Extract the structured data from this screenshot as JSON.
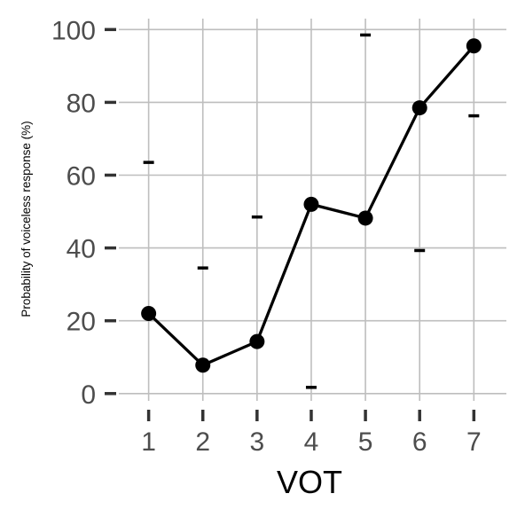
{
  "chart_data": {
    "type": "line",
    "xlabel": "VOT",
    "ylabel": "Probability of voiceless response (%)",
    "x": [
      1,
      2,
      3,
      4,
      5,
      6,
      7
    ],
    "x_tick_labels": [
      "1",
      "2",
      "3",
      "4",
      "5",
      "6",
      "7"
    ],
    "y_tick_labels": [
      "0",
      "20",
      "40",
      "60",
      "80",
      "100"
    ],
    "y_ticks": [
      0,
      20,
      40,
      60,
      80,
      100
    ],
    "xlim": [
      0.45,
      7.6
    ],
    "ylim": [
      -2,
      103
    ],
    "grid": true,
    "series": [
      {
        "values": [
          22,
          7.8,
          14.3,
          52,
          48.2,
          78.5,
          95.5
        ]
      }
    ],
    "rug_y": [
      63.5,
      34.5,
      48.5,
      1.7,
      98.5,
      39.3,
      76.3
    ],
    "rug_x": [
      1,
      2,
      3,
      4,
      5,
      6,
      7
    ],
    "colors": {
      "line": "#000000",
      "grid": "#bebebe",
      "tick_text": "#4d4d4d",
      "rug": "#333333"
    }
  }
}
